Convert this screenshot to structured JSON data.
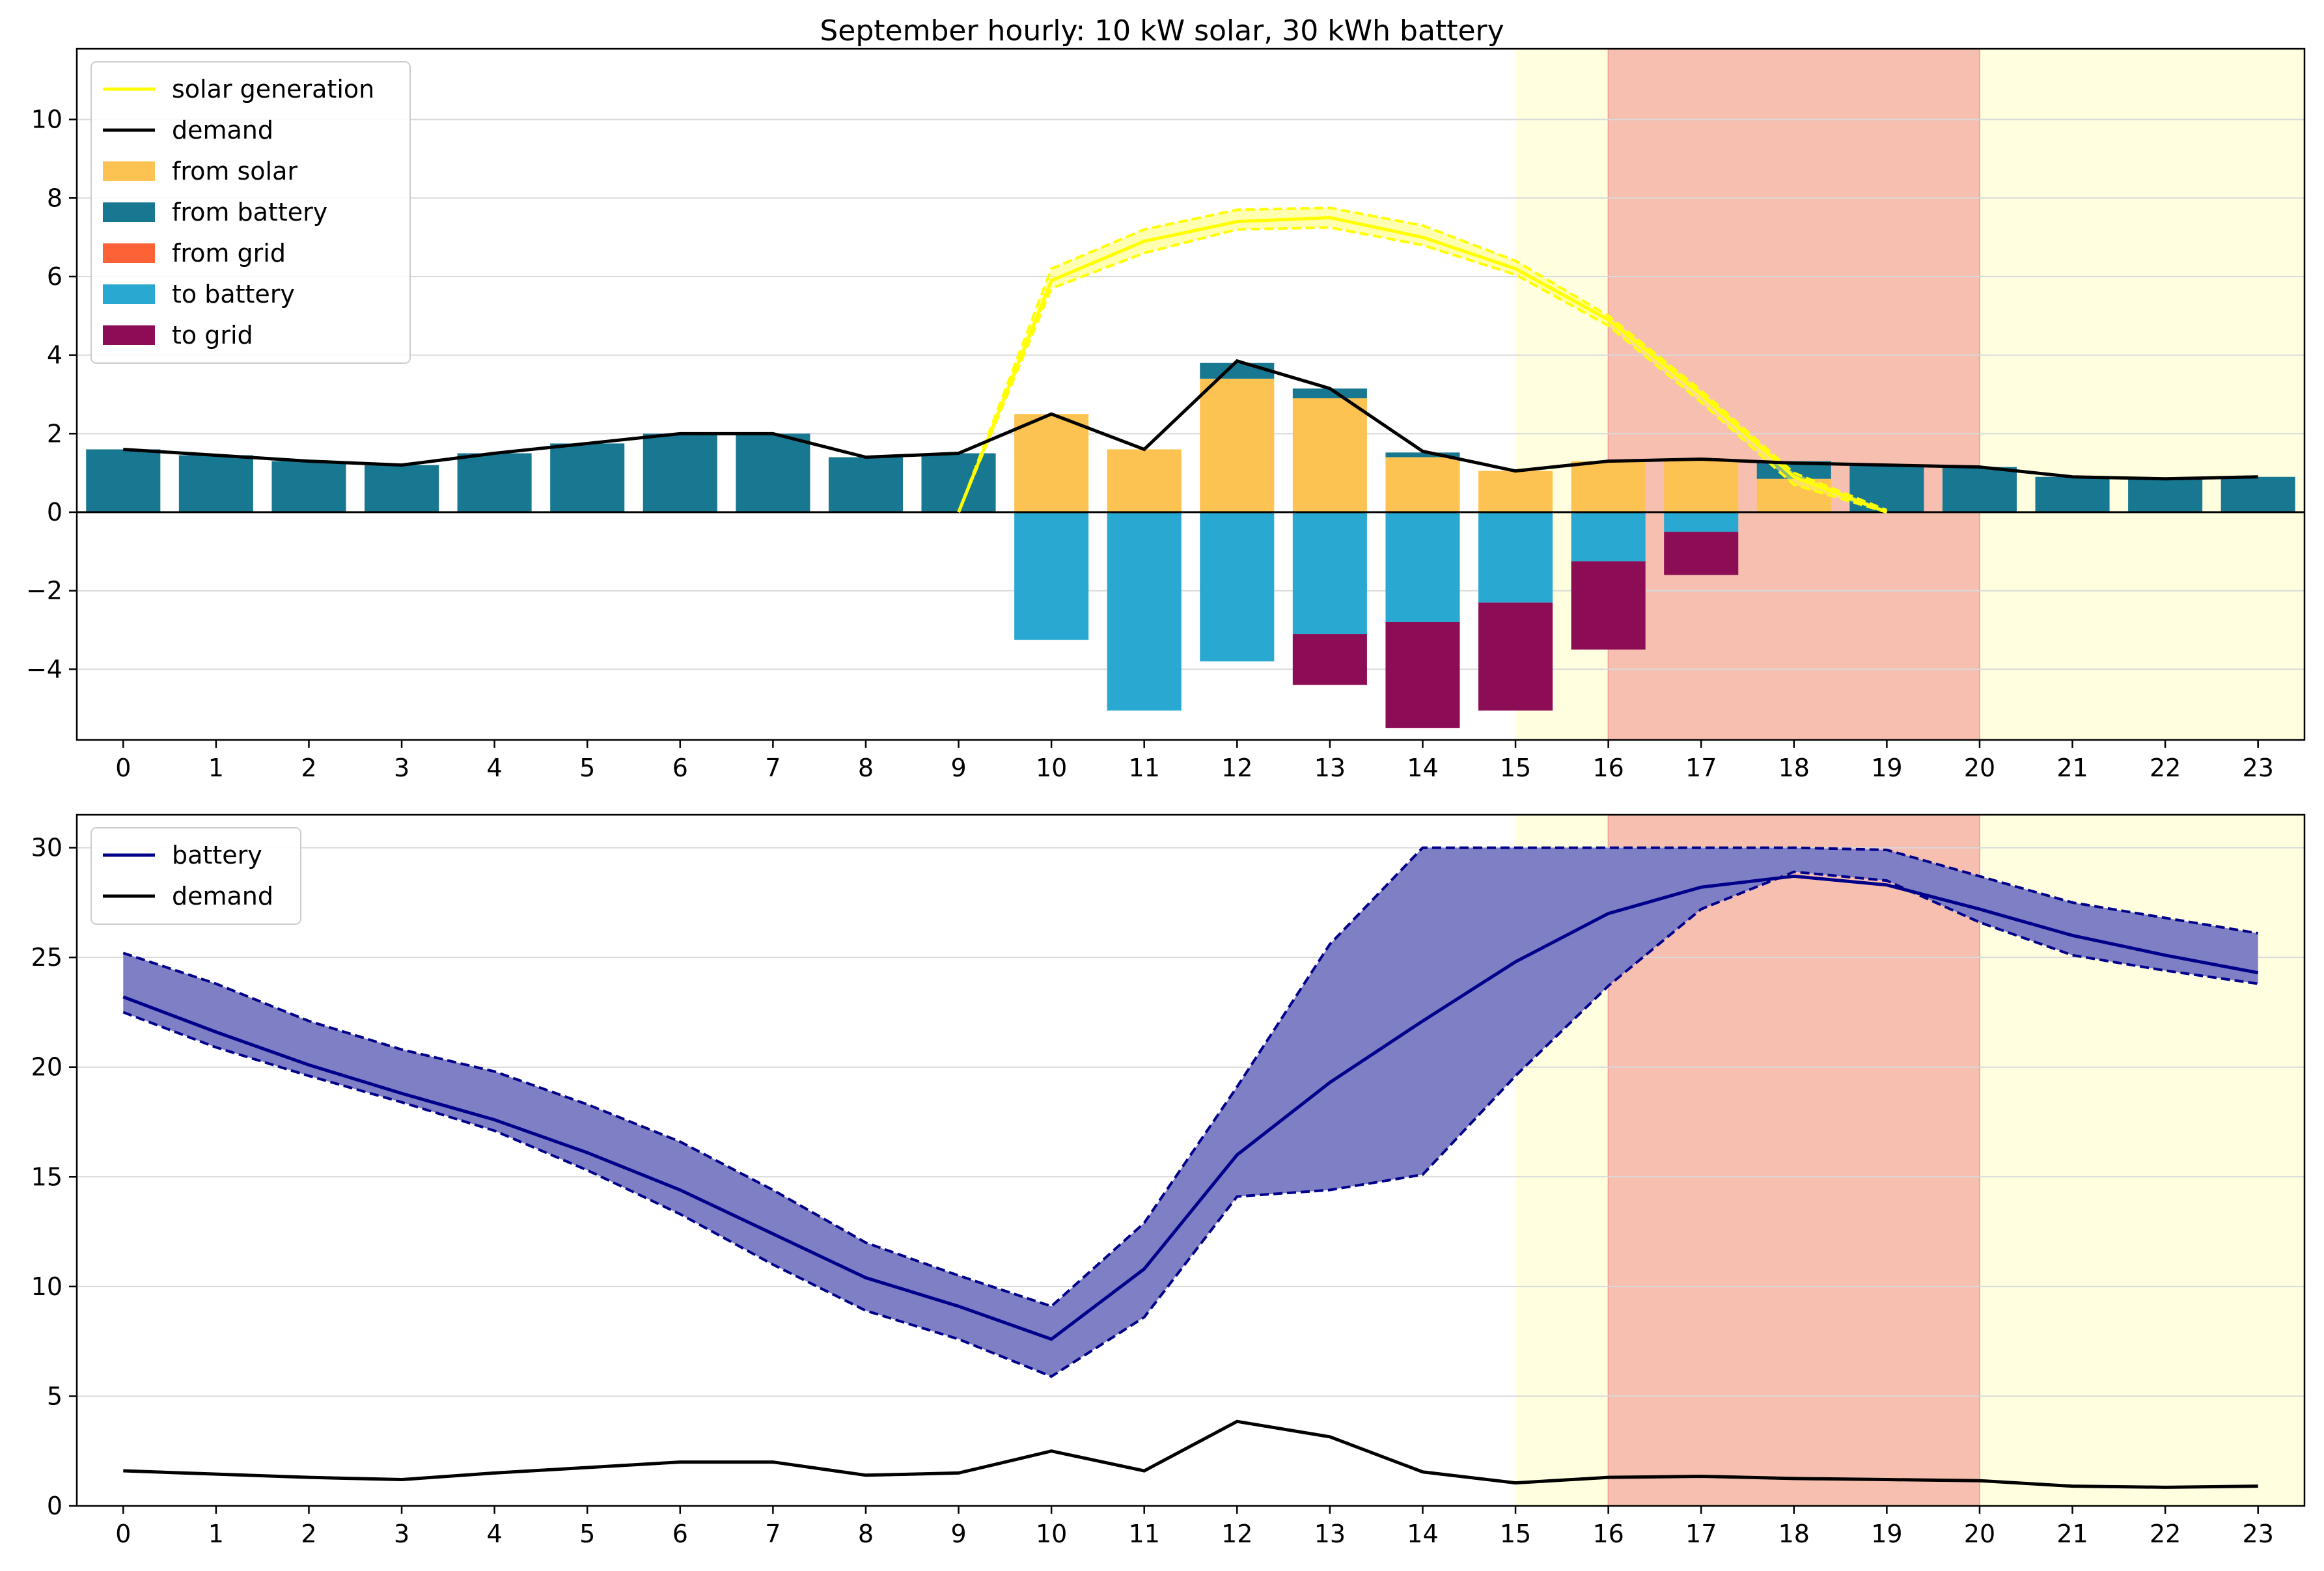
{
  "figure": {
    "title": "September hourly: 10 kW solar, 30 kWh battery"
  },
  "colors": {
    "solar_generation": "#ffff00",
    "demand": "#000000",
    "from_solar": "#fdc352",
    "from_battery": "#187891",
    "from_grid": "#fc6235",
    "to_battery": "#29a8d1",
    "to_grid": "#8c0d55",
    "battery": "#00008b",
    "battery_band": "#7f7fc5",
    "offpeak_shade": "#ffffe0",
    "peak_shade": "#f6bfb0"
  },
  "chart_data": [
    {
      "type": "bar",
      "title": "September hourly: 10 kW solar, 30 kWh battery",
      "xlabel": "",
      "ylabel": "",
      "categories": [
        "0",
        "1",
        "2",
        "3",
        "4",
        "5",
        "6",
        "7",
        "8",
        "9",
        "10",
        "11",
        "12",
        "13",
        "14",
        "15",
        "16",
        "17",
        "18",
        "19",
        "20",
        "21",
        "22",
        "23"
      ],
      "ylim": [
        -5.8,
        11.8
      ],
      "yticks": [
        -4,
        -2,
        0,
        2,
        4,
        6,
        8,
        10
      ],
      "grid": "horizontal",
      "legend": "upper-left",
      "shaded_regions": [
        {
          "from": 15,
          "to": 23.5,
          "kind": "shoulder"
        },
        {
          "from": 16,
          "to": 20,
          "kind": "peak"
        }
      ],
      "series": [
        {
          "name": "from solar",
          "kind": "bar_stack_pos",
          "color_key": "from_solar",
          "values": [
            0,
            0,
            0,
            0,
            0,
            0,
            0,
            0,
            0,
            0,
            2.5,
            1.6,
            3.4,
            2.9,
            1.4,
            1.05,
            1.3,
            1.35,
            0.85,
            0,
            0,
            0,
            0,
            0
          ]
        },
        {
          "name": "from battery",
          "kind": "bar_stack_pos",
          "color_key": "from_battery",
          "values": [
            1.6,
            1.45,
            1.3,
            1.2,
            1.5,
            1.75,
            2.0,
            2.0,
            1.4,
            1.5,
            0,
            0,
            0.4,
            0.25,
            0.12,
            0,
            0,
            0,
            0.45,
            1.2,
            1.15,
            0.9,
            0.85,
            0.9
          ]
        },
        {
          "name": "from grid",
          "kind": "bar_stack_pos",
          "color_key": "from_grid",
          "values": [
            0,
            0,
            0,
            0,
            0,
            0,
            0,
            0,
            0,
            0,
            0,
            0,
            0,
            0,
            0,
            0,
            0,
            0,
            0,
            0,
            0,
            0,
            0,
            0
          ]
        },
        {
          "name": "to battery",
          "kind": "bar_stack_neg",
          "color_key": "to_battery",
          "values": [
            0,
            0,
            0,
            0,
            0,
            0,
            0,
            0,
            0,
            0,
            -3.25,
            -5.05,
            -3.8,
            -3.1,
            -2.8,
            -2.3,
            -1.25,
            -0.5,
            0,
            0,
            0,
            0,
            0,
            0
          ]
        },
        {
          "name": "to grid",
          "kind": "bar_stack_neg",
          "color_key": "to_grid",
          "values": [
            0,
            0,
            0,
            0,
            0,
            0,
            0,
            0,
            0,
            0,
            0,
            0,
            0,
            -1.3,
            -2.7,
            -2.75,
            -2.25,
            -1.1,
            0,
            0,
            0,
            0,
            0,
            0
          ]
        },
        {
          "name": "solar generation",
          "kind": "line_band",
          "color_key": "solar_generation",
          "x": [
            9,
            10,
            11,
            12,
            13,
            14,
            15,
            16,
            17,
            18,
            19
          ],
          "values": [
            0,
            5.9,
            6.9,
            7.4,
            7.5,
            7.0,
            6.2,
            4.9,
            3.0,
            0.9,
            0
          ],
          "lower": [
            0,
            5.7,
            6.6,
            7.2,
            7.25,
            6.8,
            6.05,
            4.75,
            2.8,
            0.7,
            0
          ],
          "upper": [
            0,
            6.2,
            7.2,
            7.7,
            7.75,
            7.3,
            6.4,
            5.0,
            3.1,
            1.0,
            0.05
          ]
        },
        {
          "name": "demand",
          "kind": "line",
          "color_key": "demand",
          "values": [
            1.6,
            1.45,
            1.3,
            1.2,
            1.5,
            1.75,
            2.0,
            2.0,
            1.4,
            1.5,
            2.5,
            1.6,
            3.85,
            3.15,
            1.55,
            1.05,
            1.3,
            1.35,
            1.25,
            1.2,
            1.15,
            0.9,
            0.85,
            0.9
          ]
        }
      ]
    },
    {
      "type": "line",
      "title": "",
      "xlabel": "",
      "ylabel": "",
      "categories": [
        "0",
        "1",
        "2",
        "3",
        "4",
        "5",
        "6",
        "7",
        "8",
        "9",
        "10",
        "11",
        "12",
        "13",
        "14",
        "15",
        "16",
        "17",
        "18",
        "19",
        "20",
        "21",
        "22",
        "23"
      ],
      "ylim": [
        0,
        31.5
      ],
      "yticks": [
        0,
        5,
        10,
        15,
        20,
        25,
        30
      ],
      "grid": "horizontal",
      "legend": "upper-left",
      "shaded_regions": [
        {
          "from": 15,
          "to": 23.5,
          "kind": "shoulder"
        },
        {
          "from": 16,
          "to": 20,
          "kind": "peak"
        }
      ],
      "series": [
        {
          "name": "battery",
          "kind": "line_band",
          "color_key": "battery",
          "values": [
            23.2,
            21.6,
            20.1,
            18.8,
            17.6,
            16.1,
            14.4,
            12.4,
            10.4,
            9.1,
            7.6,
            10.8,
            16.0,
            19.3,
            22.1,
            24.8,
            27.0,
            28.2,
            28.7,
            28.3,
            27.2,
            26.0,
            25.1,
            24.3
          ],
          "lower": [
            22.5,
            20.9,
            19.6,
            18.4,
            17.1,
            15.3,
            13.3,
            11.0,
            8.9,
            7.6,
            5.9,
            8.6,
            14.1,
            14.4,
            15.1,
            19.6,
            23.7,
            27.2,
            28.9,
            28.5,
            26.6,
            25.1,
            24.4,
            23.8
          ],
          "upper": [
            25.2,
            23.8,
            22.1,
            20.8,
            19.8,
            18.3,
            16.6,
            14.4,
            12.0,
            10.5,
            9.1,
            12.9,
            19.1,
            25.6,
            30.0,
            30.0,
            30.0,
            30.0,
            30.0,
            29.9,
            28.7,
            27.5,
            26.8,
            26.1
          ]
        },
        {
          "name": "demand",
          "kind": "line",
          "color_key": "demand",
          "values": [
            1.6,
            1.45,
            1.3,
            1.2,
            1.5,
            1.75,
            2.0,
            2.0,
            1.4,
            1.5,
            2.5,
            1.6,
            3.85,
            3.15,
            1.55,
            1.05,
            1.3,
            1.35,
            1.25,
            1.2,
            1.15,
            0.9,
            0.85,
            0.9
          ]
        }
      ]
    }
  ]
}
